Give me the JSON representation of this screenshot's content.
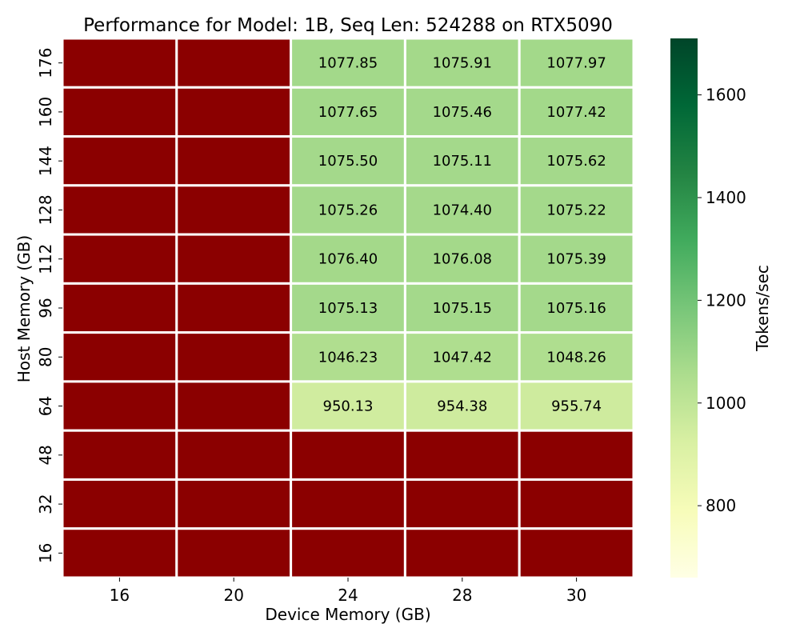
{
  "chart_data": {
    "type": "heatmap",
    "title": "Performance for Model: 1B, Seq Len: 524288 on RTX5090",
    "xlabel": "Device Memory (GB)",
    "ylabel": "Host Memory (GB)",
    "x_categories": [
      "16",
      "20",
      "24",
      "28",
      "30"
    ],
    "y_categories": [
      "176",
      "160",
      "144",
      "128",
      "112",
      "96",
      "80",
      "64",
      "48",
      "32",
      "16"
    ],
    "values": [
      [
        null,
        null,
        1077.85,
        1075.91,
        1077.97
      ],
      [
        null,
        null,
        1077.65,
        1075.46,
        1077.42
      ],
      [
        null,
        null,
        1075.5,
        1075.11,
        1075.62
      ],
      [
        null,
        null,
        1075.26,
        1074.4,
        1075.22
      ],
      [
        null,
        null,
        1076.4,
        1076.08,
        1075.39
      ],
      [
        null,
        null,
        1075.13,
        1075.15,
        1075.16
      ],
      [
        null,
        null,
        1046.23,
        1047.42,
        1048.26
      ],
      [
        null,
        null,
        950.13,
        954.38,
        955.74
      ],
      [
        null,
        null,
        null,
        null,
        null
      ],
      [
        null,
        null,
        null,
        null,
        null
      ],
      [
        null,
        null,
        null,
        null,
        null
      ]
    ],
    "missing_color": "#8b0000",
    "colormap": "YlGn",
    "colorbar": {
      "label": "Tokens/sec",
      "range": [
        660,
        1710
      ],
      "ticks": [
        800,
        1000,
        1200,
        1400,
        1600
      ]
    },
    "grid": false
  }
}
